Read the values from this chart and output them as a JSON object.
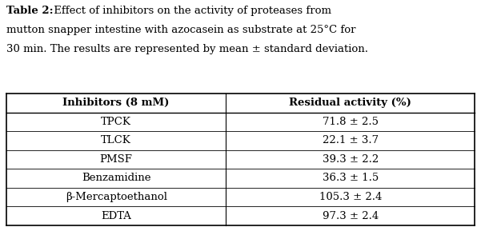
{
  "caption_bold": "Table 2:",
  "caption_normal": " Effect of inhibitors on the activity of proteases from mutton snapper intestine with azocasein as substrate at 25°C for 30 min. The results are represented by mean ± standard deviation.",
  "col_headers": [
    "Inhibitors (8 mM)",
    "Residual activity (%)"
  ],
  "rows": [
    [
      "TPCK",
      "71.8 ± 2.5"
    ],
    [
      "TLCK",
      "22.1 ± 3.7"
    ],
    [
      "PMSF",
      "39.3 ± 2.2"
    ],
    [
      "Benzamidine",
      "36.3 ± 1.5"
    ],
    [
      "β-Mercaptoethanol",
      "105.3 ± 2.4"
    ],
    [
      "EDTA",
      "97.3 ± 2.4"
    ]
  ],
  "bg_color": "#ffffff",
  "text_color": "#000000",
  "font_size_caption": 9.5,
  "font_size_table": 9.5,
  "fig_width": 6.01,
  "fig_height": 2.89
}
